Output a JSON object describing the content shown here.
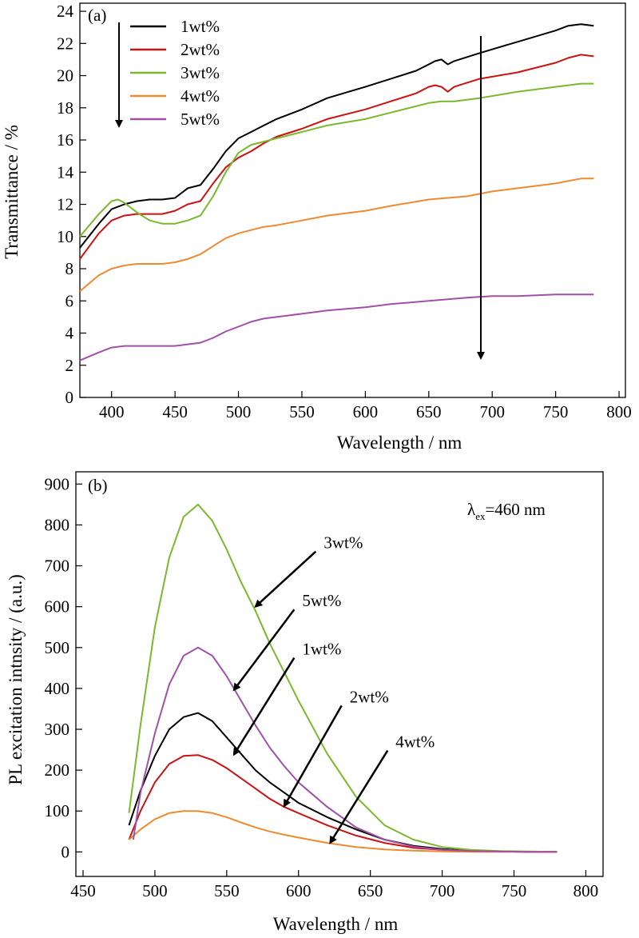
{
  "colors": {
    "1wt%": "#000000",
    "2wt%": "#cc1111",
    "3wt%": "#7ab82c",
    "4wt%": "#ee8a30",
    "5wt%": "#a050a8"
  },
  "chart_data": [
    {
      "type": "line",
      "panel_label": "(a)",
      "xlabel": "Wavelength / nm",
      "ylabel": "Transmittance / %",
      "xlim": [
        375,
        805
      ],
      "ylim": [
        0,
        24.5
      ],
      "xticks": [
        400,
        450,
        500,
        550,
        600,
        650,
        700,
        750,
        800
      ],
      "yticks": [
        0,
        2,
        4,
        6,
        8,
        10,
        12,
        14,
        16,
        18,
        20,
        22,
        24
      ],
      "grid": false,
      "legend_position": "top-left",
      "legend_order": [
        "1wt%",
        "2wt%",
        "3wt%",
        "4wt%",
        "5wt%"
      ],
      "trend_arrows": [
        "down (left, beside legend)",
        "down (right, x≈685)"
      ],
      "series": [
        {
          "name": "1wt%",
          "x": [
            375,
            390,
            400,
            410,
            420,
            430,
            440,
            450,
            460,
            470,
            480,
            490,
            500,
            510,
            520,
            530,
            550,
            570,
            600,
            620,
            640,
            650,
            655,
            660,
            665,
            670,
            690,
            720,
            750,
            760,
            770,
            780
          ],
          "y": [
            9.3,
            10.8,
            11.7,
            12.0,
            12.2,
            12.3,
            12.3,
            12.4,
            13.0,
            13.2,
            14.2,
            15.3,
            16.1,
            16.5,
            16.9,
            17.3,
            17.9,
            18.6,
            19.3,
            19.8,
            20.3,
            20.7,
            20.9,
            21.0,
            20.7,
            20.9,
            21.4,
            22.1,
            22.8,
            23.1,
            23.2,
            23.1
          ]
        },
        {
          "name": "2wt%",
          "x": [
            375,
            390,
            400,
            410,
            420,
            430,
            440,
            450,
            460,
            470,
            480,
            490,
            500,
            510,
            520,
            530,
            550,
            570,
            600,
            620,
            640,
            650,
            655,
            660,
            665,
            670,
            690,
            720,
            750,
            760,
            770,
            780
          ],
          "y": [
            8.6,
            10.2,
            11.0,
            11.3,
            11.4,
            11.4,
            11.4,
            11.6,
            12.0,
            12.2,
            13.3,
            14.3,
            14.9,
            15.3,
            15.8,
            16.2,
            16.7,
            17.3,
            17.9,
            18.4,
            18.9,
            19.3,
            19.4,
            19.3,
            19.0,
            19.3,
            19.8,
            20.2,
            20.8,
            21.1,
            21.3,
            21.2
          ]
        },
        {
          "name": "3wt%",
          "x": [
            375,
            390,
            400,
            405,
            410,
            420,
            430,
            440,
            450,
            460,
            470,
            480,
            490,
            500,
            510,
            520,
            530,
            550,
            570,
            600,
            620,
            640,
            650,
            660,
            670,
            690,
            720,
            750,
            770,
            780
          ],
          "y": [
            10.0,
            11.4,
            12.2,
            12.3,
            12.1,
            11.5,
            11.0,
            10.8,
            10.8,
            11.0,
            11.3,
            12.5,
            14.0,
            15.2,
            15.7,
            15.9,
            16.1,
            16.5,
            16.9,
            17.3,
            17.7,
            18.1,
            18.3,
            18.4,
            18.4,
            18.6,
            19.0,
            19.3,
            19.5,
            19.5
          ]
        },
        {
          "name": "4wt%",
          "x": [
            375,
            390,
            400,
            410,
            420,
            430,
            440,
            450,
            460,
            470,
            480,
            490,
            500,
            510,
            520,
            530,
            550,
            570,
            600,
            620,
            650,
            680,
            700,
            720,
            750,
            770,
            780
          ],
          "y": [
            6.6,
            7.6,
            8.0,
            8.2,
            8.3,
            8.3,
            8.3,
            8.4,
            8.6,
            8.9,
            9.4,
            9.9,
            10.2,
            10.4,
            10.6,
            10.7,
            11.0,
            11.3,
            11.6,
            11.9,
            12.3,
            12.5,
            12.8,
            13.0,
            13.3,
            13.6,
            13.6
          ]
        },
        {
          "name": "5wt%",
          "x": [
            375,
            390,
            400,
            410,
            420,
            430,
            440,
            450,
            460,
            470,
            480,
            490,
            500,
            510,
            520,
            530,
            550,
            570,
            600,
            620,
            650,
            680,
            700,
            720,
            750,
            770,
            780
          ],
          "y": [
            2.3,
            2.8,
            3.1,
            3.2,
            3.2,
            3.2,
            3.2,
            3.2,
            3.3,
            3.4,
            3.7,
            4.1,
            4.4,
            4.7,
            4.9,
            5.0,
            5.2,
            5.4,
            5.6,
            5.8,
            6.0,
            6.2,
            6.3,
            6.3,
            6.4,
            6.4,
            6.4
          ]
        }
      ]
    },
    {
      "type": "line",
      "panel_label": "(b)",
      "xlabel": "Wavelength / nm",
      "ylabel": "PL excitation intnsity / (a.u.)",
      "xlim": [
        445,
        812
      ],
      "ylim": [
        -60,
        930
      ],
      "xticks": [
        450,
        500,
        550,
        600,
        650,
        700,
        750,
        800
      ],
      "yticks": [
        0,
        100,
        200,
        300,
        400,
        500,
        600,
        700,
        800,
        900
      ],
      "grid": false,
      "annotation_text": "=460 nm",
      "annotation_symbol": "λ",
      "annotation_subscript": "ex",
      "annotation_position": "top-right",
      "series": [
        {
          "name": "1wt%",
          "x": [
            482,
            490,
            500,
            510,
            520,
            530,
            540,
            550,
            560,
            570,
            580,
            590,
            600,
            620,
            640,
            660,
            680,
            700,
            720,
            740,
            760,
            780
          ],
          "y": [
            65,
            150,
            235,
            300,
            330,
            340,
            320,
            280,
            240,
            200,
            170,
            145,
            120,
            85,
            55,
            30,
            15,
            7,
            3,
            1,
            0,
            0
          ]
        },
        {
          "name": "2wt%",
          "x": [
            482,
            490,
            500,
            510,
            520,
            530,
            540,
            550,
            560,
            570,
            580,
            590,
            600,
            620,
            640,
            660,
            680,
            700,
            720,
            740,
            760,
            780
          ],
          "y": [
            30,
            100,
            170,
            215,
            235,
            237,
            225,
            205,
            180,
            155,
            130,
            110,
            95,
            65,
            40,
            22,
            10,
            5,
            2,
            1,
            0,
            0
          ]
        },
        {
          "name": "3wt%",
          "x": [
            482,
            490,
            500,
            510,
            520,
            530,
            540,
            550,
            560,
            570,
            580,
            590,
            600,
            620,
            640,
            660,
            680,
            700,
            720,
            740,
            760,
            780
          ],
          "y": [
            95,
            310,
            550,
            720,
            820,
            850,
            810,
            740,
            660,
            590,
            510,
            440,
            370,
            240,
            135,
            65,
            30,
            12,
            5,
            2,
            1,
            0
          ]
        },
        {
          "name": "4wt%",
          "x": [
            482,
            490,
            500,
            510,
            520,
            530,
            540,
            550,
            560,
            570,
            580,
            590,
            600,
            620,
            640,
            660,
            680,
            700,
            720,
            740,
            760,
            780
          ],
          "y": [
            30,
            55,
            80,
            95,
            100,
            100,
            95,
            85,
            72,
            60,
            50,
            42,
            35,
            22,
            12,
            6,
            3,
            1,
            0,
            0,
            0,
            0
          ]
        },
        {
          "name": "5wt%",
          "x": [
            485,
            490,
            500,
            510,
            520,
            530,
            540,
            550,
            560,
            570,
            580,
            590,
            600,
            620,
            640,
            660,
            680,
            700,
            720,
            740,
            760,
            780
          ],
          "y": [
            30,
            145,
            290,
            410,
            480,
            500,
            480,
            430,
            370,
            310,
            255,
            210,
            170,
            110,
            60,
            30,
            13,
            5,
            2,
            1,
            0,
            0
          ]
        }
      ],
      "arrows": [
        {
          "label": "3wt%",
          "from": [
            612,
            735
          ],
          "to": [
            570,
            600
          ]
        },
        {
          "label": "5wt%",
          "from": [
            597,
            593
          ],
          "to": [
            555,
            396
          ]
        },
        {
          "label": "1wt%",
          "from": [
            597,
            475
          ],
          "to": [
            555,
            238
          ]
        },
        {
          "label": "2wt%",
          "from": [
            630,
            358
          ],
          "to": [
            590,
            112
          ]
        },
        {
          "label": "4wt%",
          "from": [
            662,
            248
          ],
          "to": [
            622,
            22
          ]
        }
      ]
    }
  ]
}
